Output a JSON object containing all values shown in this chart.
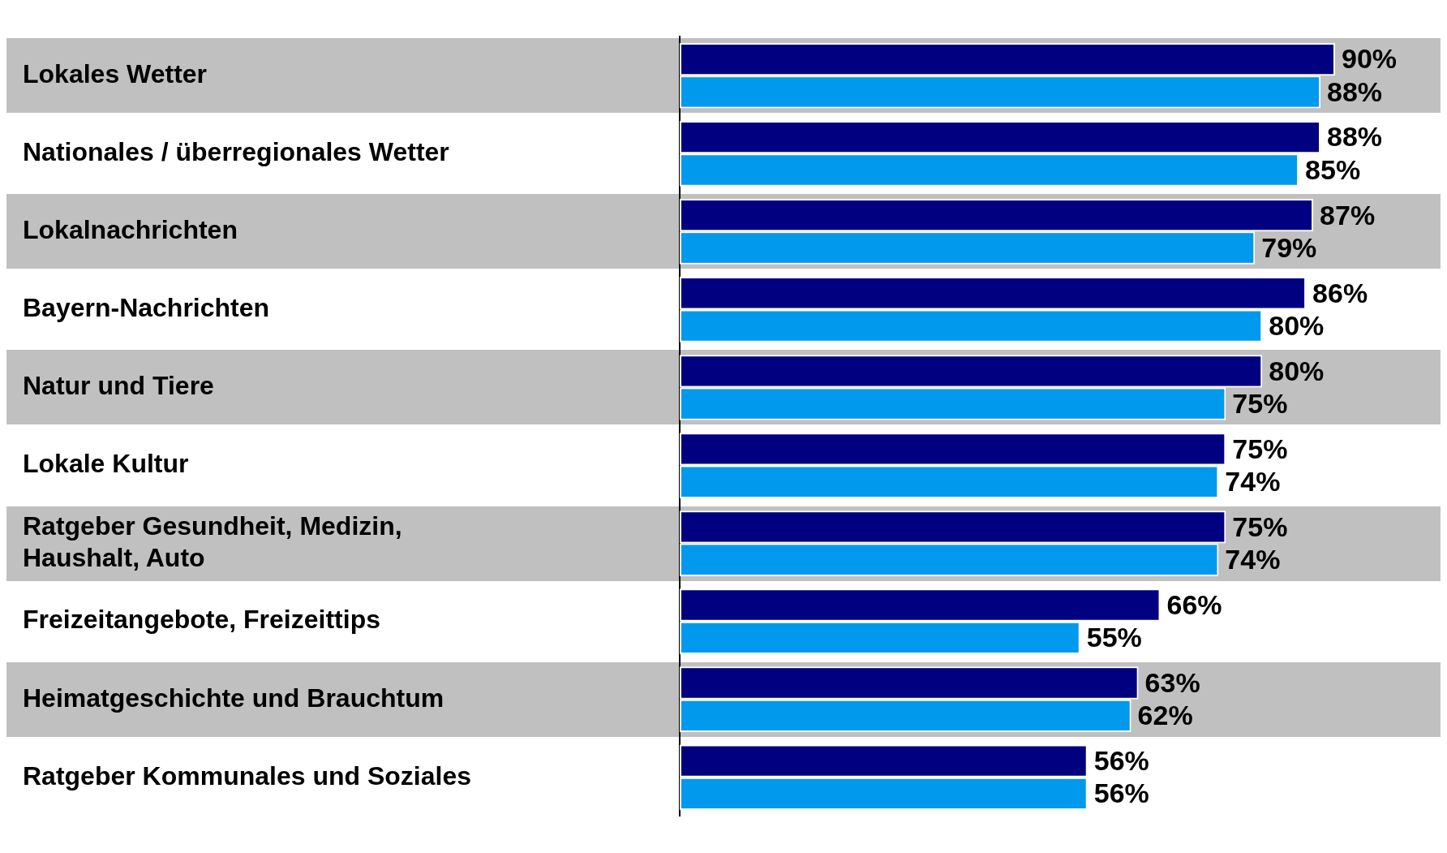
{
  "chart_data": {
    "type": "bar",
    "orientation": "horizontal",
    "categories": [
      "Lokales Wetter",
      "Nationales / überregionales Wetter",
      "Lokalnachrichten",
      "Bayern-Nachrichten",
      "Natur und Tiere",
      "Lokale Kultur",
      "Ratgeber Gesundheit, Medizin, Haushalt, Auto",
      "Freizeitangebote, Freizeittips",
      "Heimatgeschichte und Brauchtum",
      "Ratgeber Kommunales und Soziales"
    ],
    "series": [
      {
        "color": "#000080",
        "values": [
          90,
          88,
          87,
          86,
          80,
          75,
          75,
          66,
          63,
          56
        ],
        "value_labels": [
          "90%",
          "88%",
          "87%",
          "86%",
          "80%",
          "75%",
          "75%",
          "66%",
          "63%",
          "56%"
        ]
      },
      {
        "color": "#0099ee",
        "values": [
          88,
          85,
          79,
          80,
          75,
          74,
          74,
          55,
          62,
          56
        ],
        "value_labels": [
          "88%",
          "85%",
          "79%",
          "80%",
          "75%",
          "74%",
          "74%",
          "55%",
          "62%",
          "56%"
        ]
      }
    ],
    "tick_labels": "y",
    "grid": false,
    "legend": false
  }
}
